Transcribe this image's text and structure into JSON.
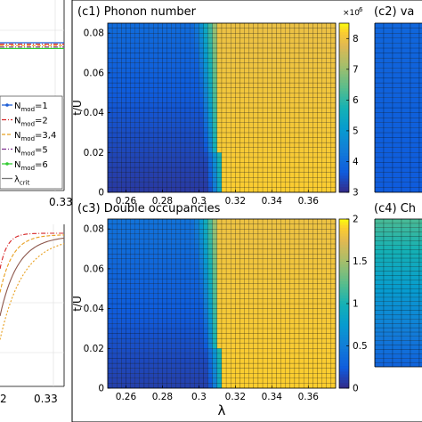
{
  "chart_data": [
    {
      "id": "c1",
      "type": "heatmap",
      "title": "(c1)  Phonon number",
      "ylabel": "t/U",
      "xlabel": "",
      "xlim": [
        0.25,
        0.375
      ],
      "ylim": [
        0,
        0.085
      ],
      "x_ticks": [
        "0.26",
        "0.28",
        "0.3",
        "0.32",
        "0.34",
        "0.36"
      ],
      "x_tick_values": [
        0.26,
        0.28,
        0.3,
        0.32,
        0.34,
        0.36
      ],
      "y_ticks": [
        "0",
        "0.02",
        "0.04",
        "0.06",
        "0.08"
      ],
      "y_tick_values": [
        0,
        0.02,
        0.04,
        0.06,
        0.08
      ],
      "colorbar": {
        "min": 3,
        "max": 8.5,
        "ticks": [
          "3",
          "4",
          "5",
          "6",
          "7",
          "8"
        ],
        "tick_values": [
          3,
          4,
          5,
          6,
          7,
          8
        ],
        "exponent": "×10",
        "exponent_power": "6"
      },
      "value_model": {
        "low": 3.2,
        "high": 8.2,
        "step_lambda": 0.31,
        "step_lambda_low_t": 0.3125,
        "step_t": 0.02,
        "ramp_start_lambda": 0.305,
        "ramp_width_lambda": 0.02,
        "ramp_t_slope": 0.1,
        "t_gradient": 0.45
      }
    },
    {
      "id": "c3",
      "type": "heatmap",
      "title": "(c3)  Double occupancies",
      "ylabel": "t/U",
      "xlabel": "λ",
      "xlim": [
        0.25,
        0.375
      ],
      "ylim": [
        0,
        0.085
      ],
      "x_ticks": [
        "0.26",
        "0.28",
        "0.3",
        "0.32",
        "0.34",
        "0.36"
      ],
      "x_tick_values": [
        0.26,
        0.28,
        0.3,
        0.32,
        0.34,
        0.36
      ],
      "y_ticks": [
        "0",
        "0.02",
        "0.04",
        "0.06",
        "0.08"
      ],
      "y_tick_values": [
        0,
        0.02,
        0.04,
        0.06,
        0.08
      ],
      "colorbar": {
        "min": 0,
        "max": 2,
        "ticks": [
          "0",
          "0.5",
          "1",
          "1.5",
          "2"
        ],
        "tick_values": [
          0,
          0.5,
          1,
          1.5,
          2
        ]
      },
      "value_model": {
        "low": 0.1,
        "high": 1.9,
        "step_lambda": 0.31,
        "step_lambda_low_t": 0.3125,
        "step_t": 0.02,
        "ramp_start_lambda": 0.305,
        "ramp_width_lambda": 0.02,
        "ramp_t_slope": 0.1,
        "t_gradient": 0.5
      }
    },
    {
      "id": "c2",
      "type": "heatmap",
      "title": "(c2)  va",
      "partial": true
    },
    {
      "id": "c4",
      "type": "heatmap",
      "title": "(c4)  Ch",
      "partial": true
    },
    {
      "id": "left-top",
      "type": "line",
      "partial": true,
      "x_ticks": [
        "0.33"
      ],
      "legend": {
        "placement": "lower-right",
        "entries": [
          {
            "label": "N",
            "sub": "mod",
            "suffix": "=1",
            "color": "#1f5fd6",
            "style": "solid-marker"
          },
          {
            "label": "N",
            "sub": "mod",
            "suffix": "=2",
            "color": "#d62728",
            "style": "dash-dot"
          },
          {
            "label": "N",
            "sub": "mod",
            "suffix": "=3,4",
            "color": "#e8a020",
            "style": "dash"
          },
          {
            "label": "N",
            "sub": "mod",
            "suffix": "=5",
            "color": "#7e2f8e",
            "style": "dash-dot"
          },
          {
            "label": "N",
            "sub": "mod",
            "suffix": "=6",
            "color": "#33cc33",
            "style": "solid-marker"
          },
          {
            "label": "λ",
            "sub": "crit",
            "suffix": "",
            "color": "#777777",
            "style": "solid"
          }
        ]
      },
      "series_colors": [
        "#1f5fd6",
        "#d62728",
        "#e8a020",
        "#7e2f8e",
        "#33cc33"
      ]
    },
    {
      "id": "left-bottom",
      "type": "line",
      "partial": true,
      "x_ticks": [
        "2",
        "0.33"
      ],
      "series_colors": [
        "#d62728",
        "#e8a020",
        "#8c564b",
        "#e8a020"
      ]
    }
  ]
}
